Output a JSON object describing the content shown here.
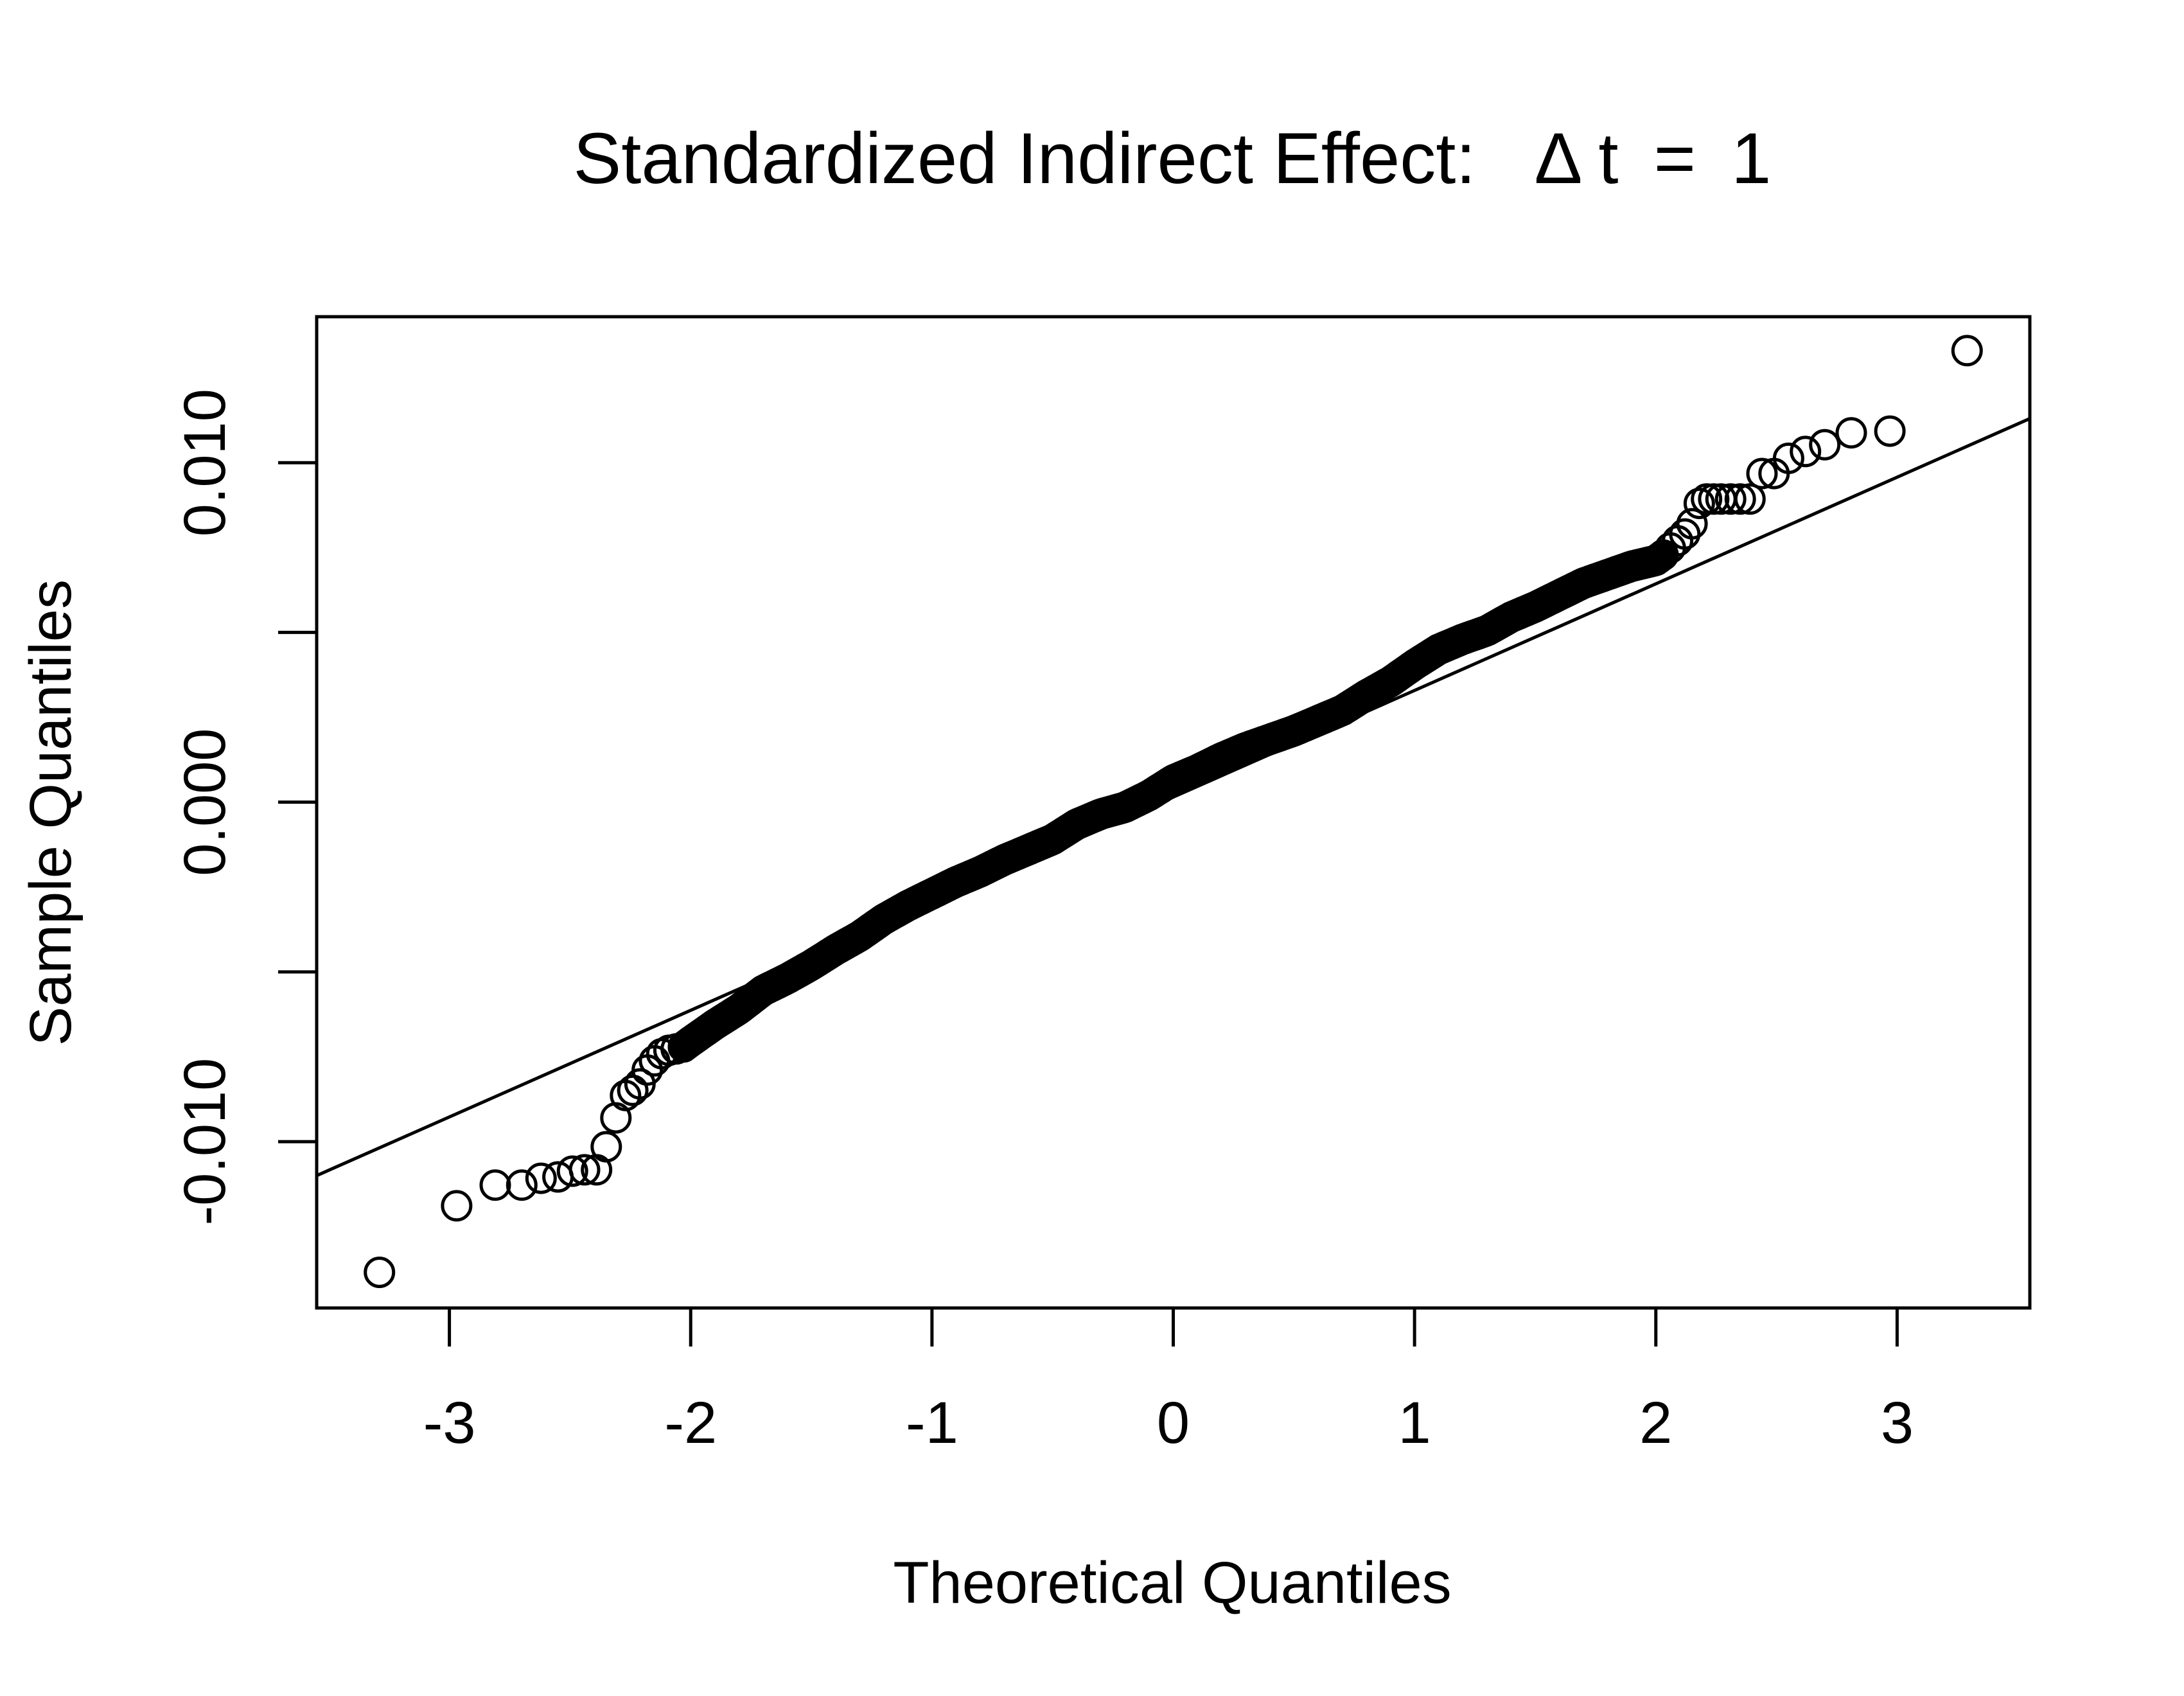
{
  "chart_data": {
    "type": "scatter",
    "title": "Standardized Indirect Effect:  Δt = 1",
    "title_parts": {
      "prefix": "Standardized Indirect Effect:",
      "delta": "Δ",
      "variable": "t",
      "equals": "=",
      "value": "1"
    },
    "xlabel": "Theoretical Quantiles",
    "ylabel": "Sample Quantiles",
    "xlim": [
      -3.55,
      3.55
    ],
    "ylim": [
      -0.0149,
      0.0143
    ],
    "x_ticks": [
      -3,
      -2,
      -1,
      0,
      1,
      2,
      3
    ],
    "x_tick_labels": [
      "-3",
      "-2",
      "-1",
      "0",
      "1",
      "2",
      "3"
    ],
    "y_ticks": [
      -0.01,
      -0.005,
      0.0,
      0.005,
      0.01
    ],
    "y_tick_labels": [
      "-0.010",
      "",
      "0.000",
      "",
      "0.010"
    ],
    "grid": false,
    "reference_line": {
      "x": [
        -3.55,
        3.55
      ],
      "y": [
        -0.011,
        0.0113
      ]
    },
    "tail_points": [
      {
        "x": -3.29,
        "y": -0.01385
      },
      {
        "x": -2.97,
        "y": -0.01189
      },
      {
        "x": -2.81,
        "y": -0.01128
      },
      {
        "x": -2.7,
        "y": -0.01128
      },
      {
        "x": -2.62,
        "y": -0.01108
      },
      {
        "x": -2.55,
        "y": -0.01104
      },
      {
        "x": -2.49,
        "y": -0.01087
      },
      {
        "x": -2.44,
        "y": -0.01083
      },
      {
        "x": -2.39,
        "y": -0.01083
      },
      {
        "x": -2.35,
        "y": -0.01015
      },
      {
        "x": -2.31,
        "y": -0.0093
      },
      {
        "x": -2.27,
        "y": -0.00864
      },
      {
        "x": -2.24,
        "y": -0.00849
      },
      {
        "x": -2.21,
        "y": -0.0083
      },
      {
        "x": -2.18,
        "y": -0.00789
      },
      {
        "x": -2.15,
        "y": -0.00762
      },
      {
        "x": -2.12,
        "y": -0.00741
      },
      {
        "x": -2.09,
        "y": -0.00731
      },
      {
        "x": -2.06,
        "y": -0.00727
      },
      {
        "x": -2.03,
        "y": -0.00721
      },
      {
        "x": 2.03,
        "y": 0.00728
      },
      {
        "x": 2.06,
        "y": 0.00749
      },
      {
        "x": 2.09,
        "y": 0.0077
      },
      {
        "x": 2.12,
        "y": 0.0079
      },
      {
        "x": 2.15,
        "y": 0.0082
      },
      {
        "x": 2.18,
        "y": 0.0088
      },
      {
        "x": 2.21,
        "y": 0.00893
      },
      {
        "x": 2.24,
        "y": 0.00893
      },
      {
        "x": 2.27,
        "y": 0.00893
      },
      {
        "x": 2.31,
        "y": 0.00893
      },
      {
        "x": 2.35,
        "y": 0.00893
      },
      {
        "x": 2.39,
        "y": 0.00893
      },
      {
        "x": 2.44,
        "y": 0.00968
      },
      {
        "x": 2.49,
        "y": 0.00968
      },
      {
        "x": 2.55,
        "y": 0.01013
      },
      {
        "x": 2.62,
        "y": 0.01033
      },
      {
        "x": 2.7,
        "y": 0.01053
      },
      {
        "x": 2.81,
        "y": 0.01088
      },
      {
        "x": 2.97,
        "y": 0.01093
      },
      {
        "x": 3.29,
        "y": 0.0133
      }
    ],
    "central_curve_nodes": [
      {
        "x": -2.03,
        "y": -0.00721
      },
      {
        "x": -2.0,
        "y": -0.00705
      },
      {
        "x": -1.9,
        "y": -0.00655
      },
      {
        "x": -1.8,
        "y": -0.0061
      },
      {
        "x": -1.7,
        "y": -0.00555
      },
      {
        "x": -1.6,
        "y": -0.0052
      },
      {
        "x": -1.5,
        "y": -0.0048
      },
      {
        "x": -1.4,
        "y": -0.00435
      },
      {
        "x": -1.3,
        "y": -0.00395
      },
      {
        "x": -1.2,
        "y": -0.00345
      },
      {
        "x": -1.1,
        "y": -0.00305
      },
      {
        "x": -1.0,
        "y": -0.0027
      },
      {
        "x": -0.9,
        "y": -0.00235
      },
      {
        "x": -0.8,
        "y": -0.00205
      },
      {
        "x": -0.7,
        "y": -0.0017
      },
      {
        "x": -0.6,
        "y": -0.0014
      },
      {
        "x": -0.5,
        "y": -0.0011
      },
      {
        "x": -0.4,
        "y": -0.00065
      },
      {
        "x": -0.3,
        "y": -0.00035
      },
      {
        "x": -0.2,
        "y": -0.00015
      },
      {
        "x": -0.1,
        "y": 0.0002
      },
      {
        "x": 0.0,
        "y": 0.00065
      },
      {
        "x": 0.1,
        "y": 0.00095
      },
      {
        "x": 0.2,
        "y": 0.0013
      },
      {
        "x": 0.3,
        "y": 0.0016
      },
      {
        "x": 0.4,
        "y": 0.00185
      },
      {
        "x": 0.5,
        "y": 0.0021
      },
      {
        "x": 0.6,
        "y": 0.0024
      },
      {
        "x": 0.7,
        "y": 0.0027
      },
      {
        "x": 0.8,
        "y": 0.00315
      },
      {
        "x": 0.9,
        "y": 0.00355
      },
      {
        "x": 1.0,
        "y": 0.00405
      },
      {
        "x": 1.1,
        "y": 0.0045
      },
      {
        "x": 1.2,
        "y": 0.0048
      },
      {
        "x": 1.3,
        "y": 0.00505
      },
      {
        "x": 1.4,
        "y": 0.00545
      },
      {
        "x": 1.5,
        "y": 0.00575
      },
      {
        "x": 1.6,
        "y": 0.0061
      },
      {
        "x": 1.7,
        "y": 0.00645
      },
      {
        "x": 1.8,
        "y": 0.0067
      },
      {
        "x": 1.9,
        "y": 0.00695
      },
      {
        "x": 2.0,
        "y": 0.00712
      },
      {
        "x": 2.03,
        "y": 0.00728
      }
    ]
  }
}
